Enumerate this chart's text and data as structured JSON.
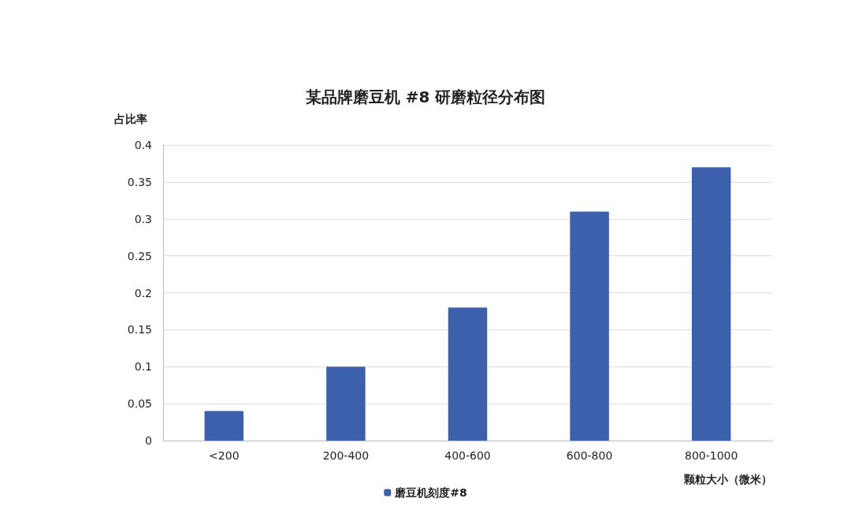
{
  "chart_data": {
    "type": "bar",
    "title": "某品牌磨豆机 #8 研磨粒径分布图",
    "xlabel": "颗粒大小（微米）",
    "ylabel": "占比率",
    "categories": [
      "<200",
      "200-400",
      "400-600",
      "600-800",
      "800-1000"
    ],
    "series": [
      {
        "name": "磨豆机刻度#8",
        "color": "#3d60ad",
        "values": [
          0.04,
          0.1,
          0.18,
          0.31,
          0.37
        ]
      }
    ],
    "ylim": [
      0,
      0.4
    ],
    "yticks": [
      0,
      0.05,
      0.1,
      0.15,
      0.2,
      0.25,
      0.3,
      0.35,
      0.4
    ],
    "grid": "y",
    "legend": "bottom"
  }
}
